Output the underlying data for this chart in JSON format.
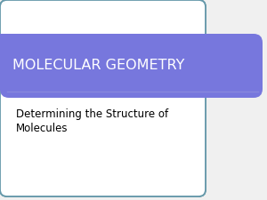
{
  "title": "MOLECULAR GEOMETRY",
  "subtitle_line1": "Determining the Structure of",
  "subtitle_line2": "Molecules",
  "bg_color": "#f0f0f0",
  "slide_bg": "#ffffff",
  "border_color": "#6699aa",
  "banner_color": "#7777dd",
  "banner_text_color": "#ffffff",
  "subtitle_text_color": "#000000",
  "title_fontsize": 11.5,
  "subtitle_fontsize": 8.5,
  "outer_border_lw": 1.3,
  "divider_color": "#8888dd",
  "divider_lw": 1.0
}
